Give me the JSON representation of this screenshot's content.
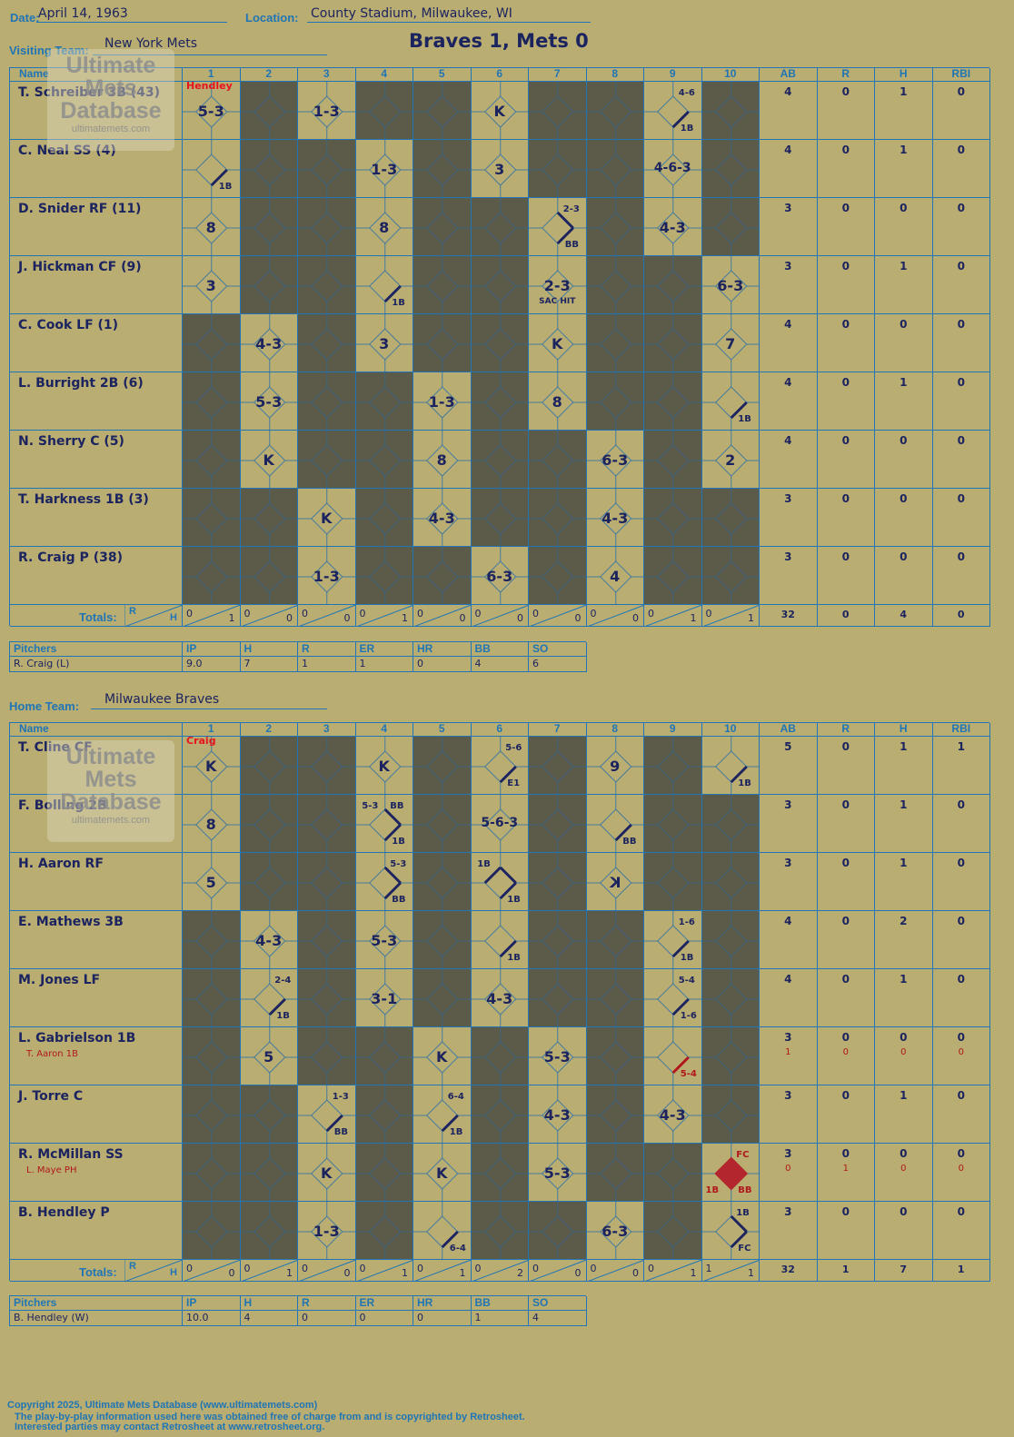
{
  "header": {
    "date_label": "Date:",
    "date": "April 14, 1963",
    "location_label": "Location:",
    "location": "County Stadium, Milwaukee, WI",
    "visiting_label": "Visiting Team:",
    "visiting_team": "New York Mets",
    "result": "Braves 1, Mets 0",
    "home_label": "Home Team:",
    "home_team": "Milwaukee Braves"
  },
  "grid_headers": {
    "name": "Name",
    "innings": [
      "1",
      "2",
      "3",
      "4",
      "5",
      "6",
      "7",
      "8",
      "9",
      "10"
    ],
    "stats": [
      "AB",
      "R",
      "H",
      "RBI"
    ],
    "totals": "Totals:",
    "r": "R",
    "h": "H"
  },
  "watermark": {
    "line1": "Ultimate",
    "line2": "Mets",
    "line3": "Database",
    "line4": "ultimatemets.com"
  },
  "visitors": {
    "players": [
      {
        "name": "T. Schreiber 3B (43)",
        "sub": "",
        "ab": "4",
        "r": "0",
        "h": "1",
        "rbi": "0",
        "sab": "",
        "sr": "",
        "sh": "",
        "srbi": ""
      },
      {
        "name": "C. Neal SS (4)",
        "sub": "",
        "ab": "4",
        "r": "0",
        "h": "1",
        "rbi": "0",
        "sab": "",
        "sr": "",
        "sh": "",
        "srbi": ""
      },
      {
        "name": "D. Snider RF (11)",
        "sub": "",
        "ab": "3",
        "r": "0",
        "h": "0",
        "rbi": "0",
        "sab": "",
        "sr": "",
        "sh": "",
        "srbi": ""
      },
      {
        "name": "J. Hickman CF (9)",
        "sub": "",
        "ab": "3",
        "r": "0",
        "h": "1",
        "rbi": "0",
        "sab": "",
        "sr": "",
        "sh": "",
        "srbi": ""
      },
      {
        "name": "C. Cook LF (1)",
        "sub": "",
        "ab": "4",
        "r": "0",
        "h": "0",
        "rbi": "0",
        "sab": "",
        "sr": "",
        "sh": "",
        "srbi": ""
      },
      {
        "name": "L. Burright 2B (6)",
        "sub": "",
        "ab": "4",
        "r": "0",
        "h": "1",
        "rbi": "0",
        "sab": "",
        "sr": "",
        "sh": "",
        "srbi": ""
      },
      {
        "name": "N. Sherry C (5)",
        "sub": "",
        "ab": "4",
        "r": "0",
        "h": "0",
        "rbi": "0",
        "sab": "",
        "sr": "",
        "sh": "",
        "srbi": ""
      },
      {
        "name": "T. Harkness 1B (3)",
        "sub": "",
        "ab": "3",
        "r": "0",
        "h": "0",
        "rbi": "0",
        "sab": "",
        "sr": "",
        "sh": "",
        "srbi": ""
      },
      {
        "name": "R. Craig P (38)",
        "sub": "",
        "ab": "3",
        "r": "0",
        "h": "0",
        "rbi": "0",
        "sab": "",
        "sr": "",
        "sh": "",
        "srbi": ""
      }
    ],
    "dark": [
      [
        0,
        1,
        0,
        1,
        1,
        0,
        1,
        1,
        0,
        1
      ],
      [
        0,
        1,
        1,
        0,
        1,
        0,
        1,
        1,
        0,
        1
      ],
      [
        0,
        1,
        1,
        0,
        1,
        1,
        0,
        1,
        0,
        1
      ],
      [
        0,
        1,
        1,
        0,
        1,
        1,
        0,
        1,
        1,
        0
      ],
      [
        1,
        0,
        1,
        0,
        1,
        1,
        0,
        1,
        1,
        0
      ],
      [
        1,
        0,
        1,
        1,
        0,
        1,
        0,
        1,
        1,
        0
      ],
      [
        1,
        0,
        1,
        1,
        0,
        1,
        1,
        0,
        1,
        0
      ],
      [
        1,
        1,
        0,
        1,
        0,
        1,
        1,
        0,
        1,
        1
      ],
      [
        1,
        1,
        0,
        1,
        1,
        0,
        1,
        0,
        1,
        1
      ]
    ],
    "plays": [
      {
        "r": 0,
        "i": 0,
        "t": "5-3",
        "note": "Hendley",
        "noteColor": "#e8141c"
      },
      {
        "r": 0,
        "i": 2,
        "t": "1-3"
      },
      {
        "r": 0,
        "i": 5,
        "t": "K"
      },
      {
        "r": 0,
        "i": 8,
        "b1": 1,
        "tr": "4-6",
        "br": "1B"
      },
      {
        "r": 1,
        "i": 0,
        "b1": 1,
        "br": "1B"
      },
      {
        "r": 1,
        "i": 3,
        "t": "1-3"
      },
      {
        "r": 1,
        "i": 5,
        "t": "3"
      },
      {
        "r": 1,
        "i": 8,
        "t": "4-6-3"
      },
      {
        "r": 2,
        "i": 0,
        "t": "8"
      },
      {
        "r": 2,
        "i": 3,
        "t": "8"
      },
      {
        "r": 2,
        "i": 6,
        "b1": 1,
        "b2": 1,
        "tr": "2-3",
        "br": "BB"
      },
      {
        "r": 2,
        "i": 8,
        "t": "4-3"
      },
      {
        "r": 3,
        "i": 0,
        "t": "3"
      },
      {
        "r": 3,
        "i": 3,
        "b1": 1,
        "br": "1B"
      },
      {
        "r": 3,
        "i": 6,
        "t": "2-3",
        "sub": "SAC HIT"
      },
      {
        "r": 3,
        "i": 9,
        "t": "6-3"
      },
      {
        "r": 4,
        "i": 1,
        "t": "4-3"
      },
      {
        "r": 4,
        "i": 3,
        "t": "3"
      },
      {
        "r": 4,
        "i": 6,
        "t": "K"
      },
      {
        "r": 4,
        "i": 9,
        "t": "7"
      },
      {
        "r": 5,
        "i": 1,
        "t": "5-3"
      },
      {
        "r": 5,
        "i": 4,
        "t": "1-3"
      },
      {
        "r": 5,
        "i": 6,
        "t": "8"
      },
      {
        "r": 5,
        "i": 9,
        "b1": 1,
        "br": "1B"
      },
      {
        "r": 6,
        "i": 1,
        "t": "K"
      },
      {
        "r": 6,
        "i": 4,
        "t": "8"
      },
      {
        "r": 6,
        "i": 7,
        "t": "6-3"
      },
      {
        "r": 6,
        "i": 9,
        "t": "2"
      },
      {
        "r": 7,
        "i": 2,
        "t": "K"
      },
      {
        "r": 7,
        "i": 4,
        "t": "4-3"
      },
      {
        "r": 7,
        "i": 7,
        "t": "4-3"
      },
      {
        "r": 8,
        "i": 2,
        "t": "1-3"
      },
      {
        "r": 8,
        "i": 5,
        "t": "6-3"
      },
      {
        "r": 8,
        "i": 7,
        "t": "4"
      }
    ],
    "totals": {
      "innings": [
        [
          "0",
          "1"
        ],
        [
          "0",
          "0"
        ],
        [
          "0",
          "0"
        ],
        [
          "0",
          "1"
        ],
        [
          "0",
          "0"
        ],
        [
          "0",
          "0"
        ],
        [
          "0",
          "0"
        ],
        [
          "0",
          "0"
        ],
        [
          "0",
          "1"
        ],
        [
          "0",
          "1"
        ]
      ],
      "ab": "32",
      "r": "0",
      "h": "4",
      "rbi": "0"
    },
    "pitchers_label": "Pitchers",
    "pitcher_cols": [
      "IP",
      "H",
      "R",
      "ER",
      "HR",
      "BB",
      "SO"
    ],
    "pitchers": [
      {
        "name": "R. Craig (L)",
        "vals": [
          "9.0",
          "7",
          "1",
          "1",
          "0",
          "4",
          "6"
        ]
      }
    ]
  },
  "home": {
    "players": [
      {
        "name": "T. Cline CF",
        "sub": "",
        "ab": "5",
        "r": "0",
        "h": "1",
        "rbi": "1",
        "sab": "",
        "sr": "",
        "sh": "",
        "srbi": ""
      },
      {
        "name": "F. Bolling 2B",
        "sub": "",
        "ab": "3",
        "r": "0",
        "h": "1",
        "rbi": "0",
        "sab": "",
        "sr": "",
        "sh": "",
        "srbi": ""
      },
      {
        "name": "H. Aaron RF",
        "sub": "",
        "ab": "3",
        "r": "0",
        "h": "1",
        "rbi": "0",
        "sab": "",
        "sr": "",
        "sh": "",
        "srbi": ""
      },
      {
        "name": "E. Mathews 3B",
        "sub": "",
        "ab": "4",
        "r": "0",
        "h": "2",
        "rbi": "0",
        "sab": "",
        "sr": "",
        "sh": "",
        "srbi": ""
      },
      {
        "name": "M. Jones LF",
        "sub": "",
        "ab": "4",
        "r": "0",
        "h": "1",
        "rbi": "0",
        "sab": "",
        "sr": "",
        "sh": "",
        "srbi": ""
      },
      {
        "name": "L. Gabrielson 1B",
        "sub": "T. Aaron 1B",
        "ab": "3",
        "r": "0",
        "h": "0",
        "rbi": "0",
        "sab": "1",
        "sr": "0",
        "sh": "0",
        "srbi": "0"
      },
      {
        "name": "J. Torre C",
        "sub": "",
        "ab": "3",
        "r": "0",
        "h": "1",
        "rbi": "0",
        "sab": "",
        "sr": "",
        "sh": "",
        "srbi": ""
      },
      {
        "name": "R. McMillan SS",
        "sub": "L. Maye PH",
        "ab": "3",
        "r": "0",
        "h": "0",
        "rbi": "0",
        "sab": "0",
        "sr": "1",
        "sh": "0",
        "srbi": "0"
      },
      {
        "name": "B. Hendley P",
        "sub": "",
        "ab": "3",
        "r": "0",
        "h": "0",
        "rbi": "0",
        "sab": "",
        "sr": "",
        "sh": "",
        "srbi": ""
      }
    ],
    "dark": [
      [
        0,
        1,
        1,
        0,
        1,
        0,
        1,
        0,
        1,
        0
      ],
      [
        0,
        1,
        1,
        0,
        1,
        0,
        1,
        0,
        1,
        1
      ],
      [
        0,
        1,
        1,
        0,
        1,
        0,
        1,
        0,
        1,
        1
      ],
      [
        1,
        0,
        1,
        0,
        1,
        0,
        1,
        1,
        0,
        1
      ],
      [
        1,
        0,
        1,
        0,
        1,
        0,
        1,
        1,
        0,
        1
      ],
      [
        1,
        0,
        1,
        1,
        0,
        1,
        0,
        1,
        0,
        1
      ],
      [
        1,
        1,
        0,
        1,
        0,
        1,
        0,
        1,
        0,
        1
      ],
      [
        1,
        1,
        0,
        1,
        0,
        1,
        0,
        1,
        1,
        0
      ],
      [
        1,
        1,
        0,
        1,
        0,
        1,
        1,
        0,
        1,
        0
      ]
    ],
    "plays": [
      {
        "r": 0,
        "i": 0,
        "t": "K",
        "note": "Craig",
        "noteColor": "#e8141c"
      },
      {
        "r": 0,
        "i": 3,
        "t": "K"
      },
      {
        "r": 0,
        "i": 5,
        "b1": 1,
        "tr": "5-6",
        "br": "E1"
      },
      {
        "r": 0,
        "i": 7,
        "t": "9"
      },
      {
        "r": 0,
        "i": 9,
        "b1": 1,
        "br": "1B"
      },
      {
        "r": 1,
        "i": 0,
        "t": "8"
      },
      {
        "r": 1,
        "i": 3,
        "b1": 1,
        "b2": 1,
        "tl": "5-3",
        "tr": "BB",
        "br": "1B"
      },
      {
        "r": 1,
        "i": 5,
        "t": "5-6-3"
      },
      {
        "r": 1,
        "i": 7,
        "b1": 1,
        "br": "BB"
      },
      {
        "r": 2,
        "i": 0,
        "t": "5"
      },
      {
        "r": 2,
        "i": 3,
        "b1": 1,
        "b2": 1,
        "tr": "5-3",
        "br": "BB"
      },
      {
        "r": 2,
        "i": 5,
        "b1": 1,
        "b2": 1,
        "b3": 1,
        "tl": "1B",
        "br": "1B"
      },
      {
        "r": 2,
        "i": 7,
        "t": "K",
        "flip": 1
      },
      {
        "r": 3,
        "i": 1,
        "t": "4-3"
      },
      {
        "r": 3,
        "i": 3,
        "t": "5-3"
      },
      {
        "r": 3,
        "i": 5,
        "b1": 1,
        "br": "1B"
      },
      {
        "r": 3,
        "i": 8,
        "b1": 1,
        "tr": "1-6",
        "br": "1B"
      },
      {
        "r": 4,
        "i": 1,
        "b1": 1,
        "tr": "2-4",
        "br": "1B"
      },
      {
        "r": 4,
        "i": 3,
        "t": "3-1"
      },
      {
        "r": 4,
        "i": 5,
        "t": "4-3"
      },
      {
        "r": 4,
        "i": 8,
        "b1": 1,
        "tr": "5-4",
        "br": "1-6"
      },
      {
        "r": 5,
        "i": 1,
        "t": "5"
      },
      {
        "r": 5,
        "i": 4,
        "t": "K"
      },
      {
        "r": 5,
        "i": 6,
        "t": "5-3"
      },
      {
        "r": 5,
        "i": 8,
        "b1": 1,
        "red": 1,
        "br": "5-4"
      },
      {
        "r": 6,
        "i": 2,
        "b1": 1,
        "tr": "1-3",
        "br": "BB"
      },
      {
        "r": 6,
        "i": 4,
        "b1": 1,
        "tr": "6-4",
        "br": "1B"
      },
      {
        "r": 6,
        "i": 6,
        "t": "4-3"
      },
      {
        "r": 6,
        "i": 8,
        "t": "4-3"
      },
      {
        "r": 7,
        "i": 2,
        "t": "K"
      },
      {
        "r": 7,
        "i": 4,
        "t": "K"
      },
      {
        "r": 7,
        "i": 6,
        "t": "5-3"
      },
      {
        "r": 7,
        "i": 9,
        "run": 1,
        "tr": "FC",
        "bl": "1B",
        "br": "BB"
      },
      {
        "r": 8,
        "i": 2,
        "t": "1-3"
      },
      {
        "r": 8,
        "i": 4,
        "b1": 1,
        "br": "6-4"
      },
      {
        "r": 8,
        "i": 7,
        "t": "6-3"
      },
      {
        "r": 8,
        "i": 9,
        "b1": 1,
        "b2": 1,
        "tr": "1B",
        "br": "FC"
      }
    ],
    "totals": {
      "innings": [
        [
          "0",
          "0"
        ],
        [
          "0",
          "1"
        ],
        [
          "0",
          "0"
        ],
        [
          "0",
          "1"
        ],
        [
          "0",
          "1"
        ],
        [
          "0",
          "2"
        ],
        [
          "0",
          "0"
        ],
        [
          "0",
          "0"
        ],
        [
          "0",
          "1"
        ],
        [
          "1",
          "1"
        ]
      ],
      "ab": "32",
      "r": "1",
      "h": "7",
      "rbi": "1"
    },
    "pitchers_label": "Pitchers",
    "pitcher_cols": [
      "IP",
      "H",
      "R",
      "ER",
      "HR",
      "BB",
      "SO"
    ],
    "pitchers": [
      {
        "name": "B. Hendley (W)",
        "vals": [
          "10.0",
          "4",
          "0",
          "0",
          "0",
          "1",
          "4"
        ]
      }
    ]
  },
  "footer": {
    "line1": "Copyright 2025, Ultimate Mets Database (www.ultimatemets.com)",
    "line2": "The play-by-play information used here was obtained free of charge from and is copyrighted by Retrosheet.",
    "line3": "Interested parties may contact Retrosheet at www.retrosheet.org."
  },
  "colors": {
    "paper": "#baad71",
    "dark": "#5c5a48",
    "grid": "#1f75b5",
    "ink": "#1c2460",
    "red_ink": "#b0171d",
    "run": "#b3262d"
  }
}
